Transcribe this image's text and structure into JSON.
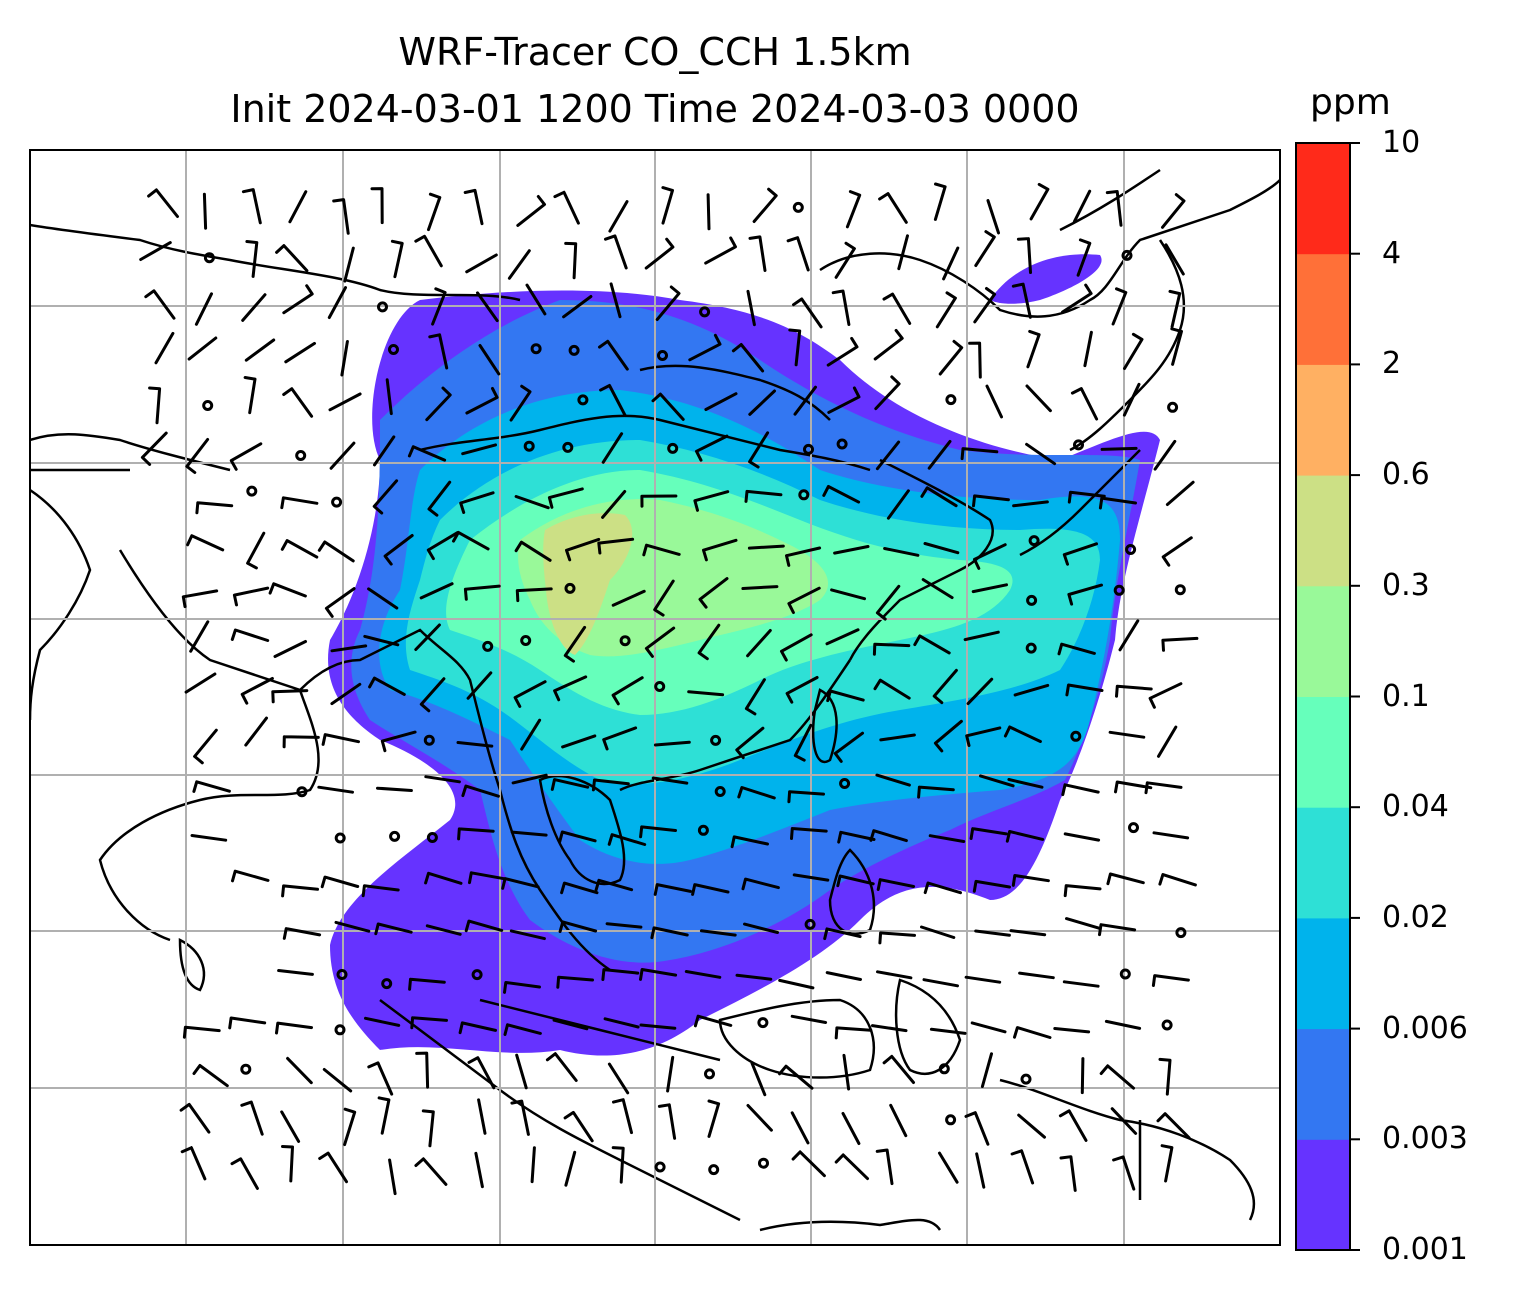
{
  "title": {
    "line1": "WRF-Tracer CO_CCH 1.5km",
    "line2": "Init 2024-03-01 1200 Time 2024-03-03 0000"
  },
  "colorbar": {
    "unit": "ppm",
    "levels": [
      "0.001",
      "0.003",
      "0.006",
      "0.02",
      "0.04",
      "0.1",
      "0.3",
      "0.6",
      "2",
      "4",
      "10"
    ],
    "colors": [
      "#6633ff",
      "#3377f2",
      "#00b3ec",
      "#2ee0d6",
      "#66ffbb",
      "#99f999",
      "#cce085",
      "#ffb062",
      "#ff7038",
      "#ff2a1a"
    ]
  },
  "map": {
    "background": "#ffffff",
    "gridline_color": "#b0b0b0",
    "coastline_color": "#000000",
    "wind_barbs": "black"
  }
}
